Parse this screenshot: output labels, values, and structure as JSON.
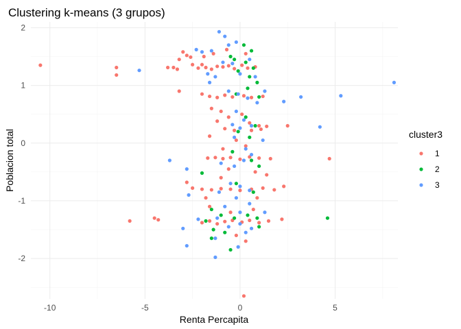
{
  "chart_data": {
    "type": "scatter",
    "title": "Clustering k-means (3 grupos)",
    "xlabel": "Renta Percapita",
    "ylabel": "Poblacion total",
    "xlim": [
      -11.0,
      8.3
    ],
    "ylim": [
      -2.7,
      2.1
    ],
    "x_ticks": [
      -10,
      -5,
      0,
      5
    ],
    "y_ticks": [
      -2,
      -1,
      0,
      1,
      2
    ],
    "x_tick_labels": [
      "-10",
      "-5",
      "0",
      "5"
    ],
    "y_tick_labels": [
      "-2",
      "-1",
      "0",
      "1",
      "2"
    ],
    "grid": true,
    "legend": {
      "title": "cluster3",
      "position": "right"
    },
    "series": [
      {
        "name": "1",
        "color": "#F8766D",
        "points": [
          [
            -10.5,
            1.35
          ],
          [
            -6.5,
            1.31
          ],
          [
            -6.5,
            1.18
          ],
          [
            -3.8,
            1.31
          ],
          [
            -3.5,
            1.31
          ],
          [
            -3.3,
            1.28
          ],
          [
            -3.0,
            1.58
          ],
          [
            -3.2,
            1.45
          ],
          [
            -2.8,
            1.52
          ],
          [
            -2.6,
            1.49
          ],
          [
            -2.5,
            1.36
          ],
          [
            -2.2,
            1.3
          ],
          [
            -2.0,
            1.36
          ],
          [
            -1.8,
            1.31
          ],
          [
            -1.5,
            1.28
          ],
          [
            -1.2,
            1.33
          ],
          [
            -0.9,
            1.32
          ],
          [
            -0.6,
            1.34
          ],
          [
            -0.3,
            1.29
          ],
          [
            0.1,
            1.35
          ],
          [
            0.4,
            1.3
          ],
          [
            0.8,
            1.32
          ],
          [
            -1.9,
            1.5
          ],
          [
            -1.4,
            1.55
          ],
          [
            -0.7,
            1.62
          ],
          [
            0.3,
            1.55
          ],
          [
            -3.2,
            0.9
          ],
          [
            -2.0,
            0.85
          ],
          [
            -1.6,
            0.81
          ],
          [
            -1.2,
            0.79
          ],
          [
            -0.8,
            0.83
          ],
          [
            -0.4,
            0.8
          ],
          [
            0.2,
            0.82
          ],
          [
            0.6,
            0.79
          ],
          [
            1.2,
            0.81
          ],
          [
            -1.5,
            0.6
          ],
          [
            -1.0,
            0.55
          ],
          [
            -0.6,
            0.45
          ],
          [
            0.1,
            0.5
          ],
          [
            0.5,
            0.35
          ],
          [
            1.0,
            0.3
          ],
          [
            1.4,
            0.29
          ],
          [
            2.5,
            0.3
          ],
          [
            -1.2,
            0.38
          ],
          [
            -0.8,
            0.25
          ],
          [
            -0.3,
            0.22
          ],
          [
            0.6,
            0.22
          ],
          [
            1.1,
            0.24
          ],
          [
            -1.6,
            0.12
          ],
          [
            -0.2,
            0.05
          ],
          [
            0.3,
            -0.05
          ],
          [
            -0.9,
            -0.1
          ],
          [
            -1.7,
            -0.26
          ],
          [
            -1.3,
            -0.25
          ],
          [
            -0.9,
            -0.27
          ],
          [
            -0.5,
            -0.25
          ],
          [
            0.0,
            -0.28
          ],
          [
            0.5,
            -0.24
          ],
          [
            1.0,
            -0.26
          ],
          [
            1.6,
            -0.27
          ],
          [
            4.7,
            -0.27
          ],
          [
            -0.6,
            -0.45
          ],
          [
            0.8,
            -0.5
          ],
          [
            -1.0,
            -0.6
          ],
          [
            1.4,
            -0.55
          ],
          [
            -2.5,
            -0.78
          ],
          [
            -2.0,
            -0.8
          ],
          [
            -1.5,
            -0.81
          ],
          [
            -1.0,
            -0.79
          ],
          [
            -0.5,
            -0.8
          ],
          [
            0.0,
            -0.82
          ],
          [
            0.6,
            -0.8
          ],
          [
            1.2,
            -0.78
          ],
          [
            1.8,
            -0.81
          ],
          [
            2.3,
            -0.75
          ],
          [
            -2.8,
            -0.68
          ],
          [
            -1.8,
            -0.95
          ],
          [
            0.9,
            -0.95
          ],
          [
            -1.6,
            -1.1
          ],
          [
            -0.5,
            -1.2
          ],
          [
            0.7,
            -1.15
          ],
          [
            -5.8,
            -1.35
          ],
          [
            -4.5,
            -1.3
          ],
          [
            -4.3,
            -1.33
          ],
          [
            -2.0,
            -1.38
          ],
          [
            -1.6,
            -1.35
          ],
          [
            -1.2,
            -1.4
          ],
          [
            -0.8,
            -1.36
          ],
          [
            -0.4,
            -1.34
          ],
          [
            0.1,
            -1.37
          ],
          [
            0.5,
            -1.34
          ],
          [
            1.0,
            -1.38
          ],
          [
            1.5,
            -1.35
          ],
          [
            2.2,
            -1.32
          ],
          [
            -0.2,
            -1.6
          ],
          [
            0.3,
            -1.7
          ],
          [
            0.2,
            -2.65
          ]
        ]
      },
      {
        "name": "2",
        "color": "#00BA38",
        "points": [
          [
            -0.3,
            1.45
          ],
          [
            0.3,
            1.4
          ],
          [
            0.7,
            1.3
          ],
          [
            -0.1,
            1.25
          ],
          [
            0.6,
            1.6
          ],
          [
            0.5,
            1.15
          ],
          [
            -0.5,
            1.5
          ],
          [
            0.2,
            1.7
          ],
          [
            0.9,
            1.05
          ],
          [
            0.4,
            0.95
          ],
          [
            -0.2,
            0.85
          ],
          [
            1.0,
            0.8
          ],
          [
            0.3,
            0.45
          ],
          [
            -0.1,
            0.2
          ],
          [
            0.8,
            0.3
          ],
          [
            0.5,
            0.1
          ],
          [
            -0.4,
            -0.15
          ],
          [
            0.6,
            -0.3
          ],
          [
            1.0,
            -0.4
          ],
          [
            -2.0,
            -0.52
          ],
          [
            -0.2,
            -0.7
          ],
          [
            0.7,
            -0.85
          ],
          [
            -1.5,
            -1.15
          ],
          [
            -1.0,
            -1.25
          ],
          [
            -1.8,
            -1.35
          ],
          [
            -1.4,
            -1.5
          ],
          [
            -0.3,
            -1.3
          ],
          [
            0.4,
            -1.25
          ],
          [
            1.0,
            -1.45
          ],
          [
            -0.8,
            -1.55
          ],
          [
            0.9,
            -1.3
          ],
          [
            -1.5,
            -1.65
          ],
          [
            4.6,
            -1.3
          ],
          [
            -0.5,
            -1.85
          ]
        ]
      },
      {
        "name": "3",
        "color": "#619CFF",
        "points": [
          [
            -1.1,
            1.93
          ],
          [
            -0.8,
            1.85
          ],
          [
            -1.5,
            1.6
          ],
          [
            -2.3,
            1.62
          ],
          [
            -2.0,
            1.58
          ],
          [
            -0.2,
            1.75
          ],
          [
            -0.6,
            1.7
          ],
          [
            -5.3,
            1.26
          ],
          [
            -1.7,
            1.2
          ],
          [
            -1.3,
            1.15
          ],
          [
            -0.9,
            1.4
          ],
          [
            -0.4,
            1.38
          ],
          [
            0.0,
            1.2
          ],
          [
            0.5,
            1.45
          ],
          [
            0.8,
            1.15
          ],
          [
            -1.6,
            1.05
          ],
          [
            -0.6,
            0.9
          ],
          [
            -0.1,
            0.85
          ],
          [
            0.4,
            0.78
          ],
          [
            0.9,
            0.7
          ],
          [
            1.3,
            0.9
          ],
          [
            2.3,
            0.72
          ],
          [
            3.2,
            0.8
          ],
          [
            5.3,
            0.82
          ],
          [
            8.1,
            1.05
          ],
          [
            -0.2,
            0.55
          ],
          [
            0.2,
            0.4
          ],
          [
            0.6,
            0.3
          ],
          [
            -0.4,
            0.32
          ],
          [
            0.0,
            0.26
          ],
          [
            1.2,
            0.05
          ],
          [
            4.2,
            0.28
          ],
          [
            -0.3,
            0.1
          ],
          [
            0.3,
            -0.1
          ],
          [
            -3.7,
            -0.3
          ],
          [
            -2.8,
            -0.45
          ],
          [
            -1.0,
            -0.35
          ],
          [
            -0.3,
            -0.4
          ],
          [
            0.2,
            -0.3
          ],
          [
            0.6,
            -0.2
          ],
          [
            -0.5,
            -0.7
          ],
          [
            0.0,
            -0.75
          ],
          [
            0.5,
            -0.82
          ],
          [
            -0.2,
            -0.95
          ],
          [
            -1.1,
            -0.85
          ],
          [
            -2.7,
            -0.9
          ],
          [
            -0.8,
            -1.1
          ],
          [
            0.0,
            -1.2
          ],
          [
            0.5,
            -1.05
          ],
          [
            -3.0,
            -1.48
          ],
          [
            -2.2,
            -1.32
          ],
          [
            -1.2,
            -1.3
          ],
          [
            -0.6,
            -1.45
          ],
          [
            0.0,
            -1.4
          ],
          [
            0.6,
            -1.48
          ],
          [
            1.3,
            -1.2
          ],
          [
            -2.8,
            -1.78
          ],
          [
            -1.3,
            -1.65
          ],
          [
            -0.1,
            -1.8
          ],
          [
            0.3,
            -1.55
          ],
          [
            -1.3,
            -1.98
          ]
        ]
      }
    ]
  }
}
